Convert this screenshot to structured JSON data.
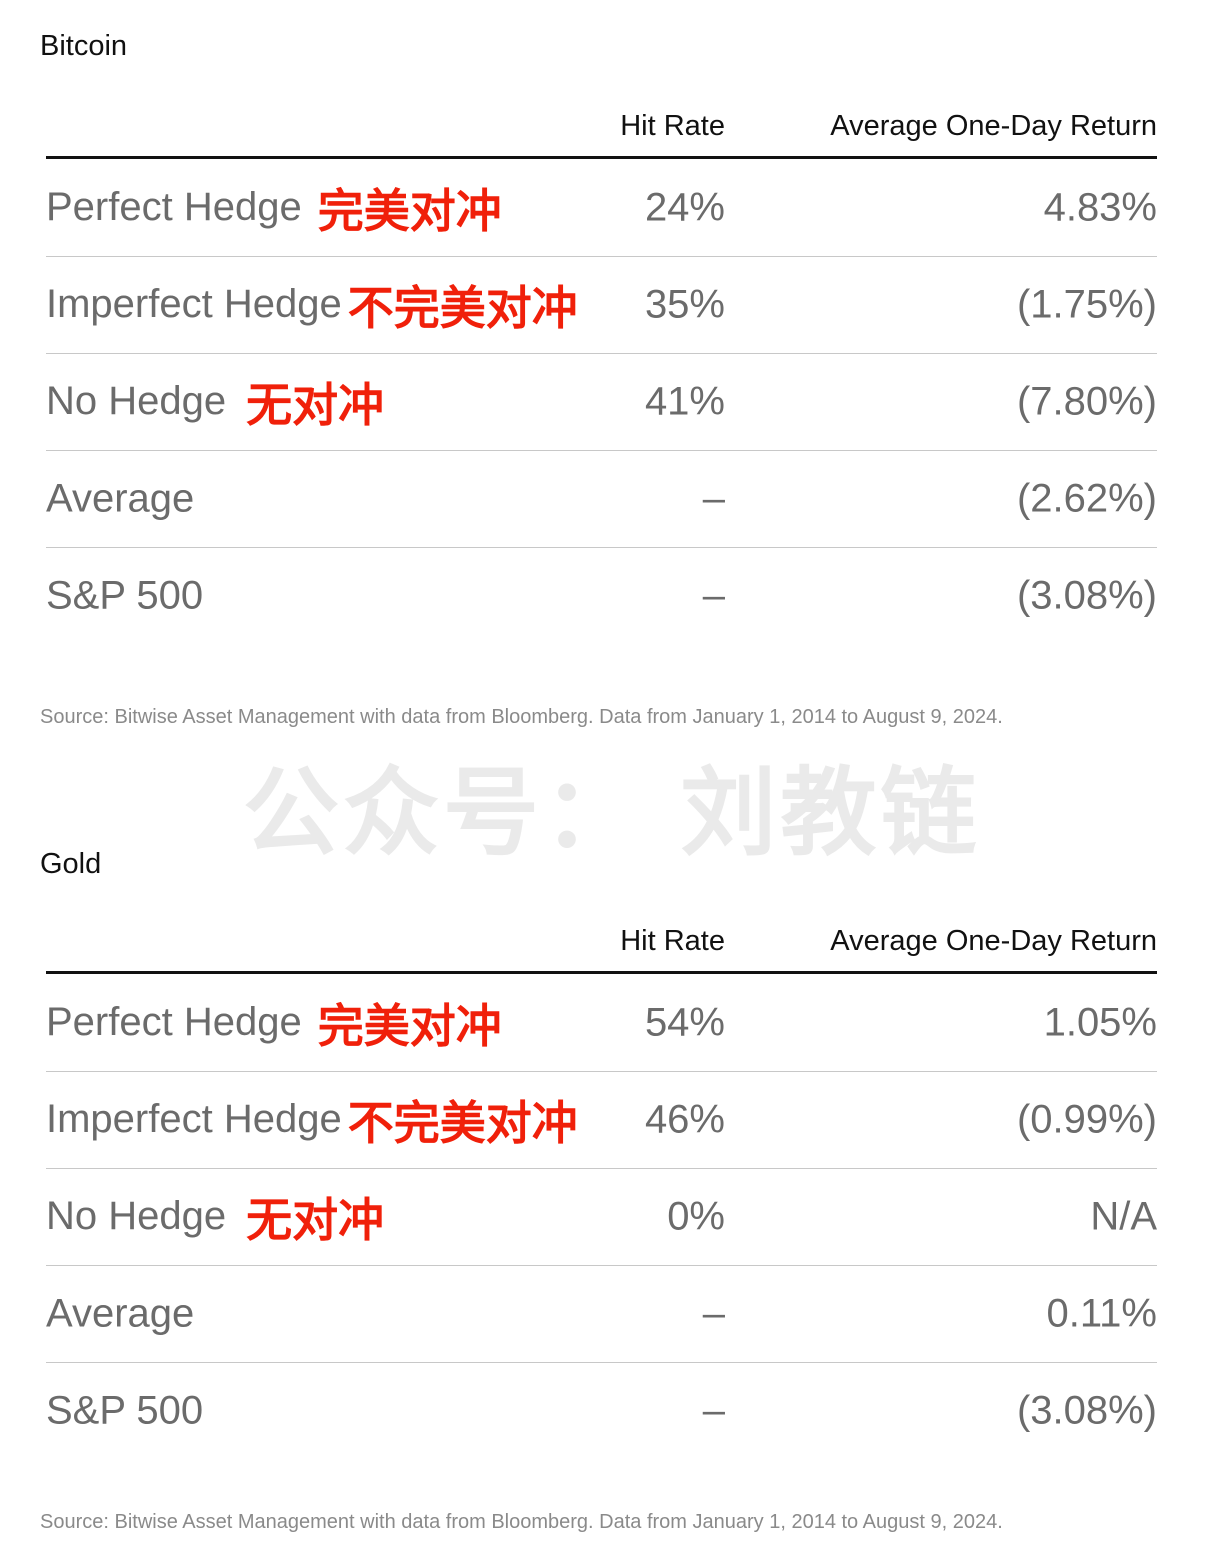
{
  "watermark": "公众号： 刘教链",
  "tables": [
    {
      "title": "Bitcoin",
      "headers": {
        "hit_rate": "Hit Rate",
        "avg_return": "Average One-Day Return"
      },
      "rows": [
        {
          "label": "Perfect Hedge",
          "label_zh": "完美对冲",
          "hit_rate": "24%",
          "avg_return": "4.83%"
        },
        {
          "label": "Imperfect Hedge",
          "label_zh": "不完美对冲",
          "hit_rate": "35%",
          "avg_return": "(1.75%)"
        },
        {
          "label": "No Hedge",
          "label_zh": "无对冲",
          "hit_rate": "41%",
          "avg_return": "(7.80%)"
        },
        {
          "label": "Average",
          "label_zh": "",
          "hit_rate": "–",
          "avg_return": "(2.62%)"
        },
        {
          "label": "S&P 500",
          "label_zh": "",
          "hit_rate": "–",
          "avg_return": "(3.08%)"
        }
      ],
      "source": "Source: Bitwise Asset Management with data from Bloomberg. Data from January 1, 2014 to August 9, 2024."
    },
    {
      "title": "Gold",
      "headers": {
        "hit_rate": "Hit Rate",
        "avg_return": "Average One-Day Return"
      },
      "rows": [
        {
          "label": "Perfect Hedge",
          "label_zh": "完美对冲",
          "hit_rate": "54%",
          "avg_return": "1.05%"
        },
        {
          "label": "Imperfect Hedge",
          "label_zh": "不完美对冲",
          "hit_rate": "46%",
          "avg_return": "(0.99%)"
        },
        {
          "label": "No Hedge",
          "label_zh": "无对冲",
          "hit_rate": "0%",
          "avg_return": "N/A"
        },
        {
          "label": "Average",
          "label_zh": "",
          "hit_rate": "–",
          "avg_return": "0.11%"
        },
        {
          "label": "S&P 500",
          "label_zh": "",
          "hit_rate": "–",
          "avg_return": "(3.08%)"
        }
      ],
      "source": "Source: Bitwise Asset Management with data from Bloomberg. Data from January 1, 2014 to August 9, 2024."
    }
  ]
}
